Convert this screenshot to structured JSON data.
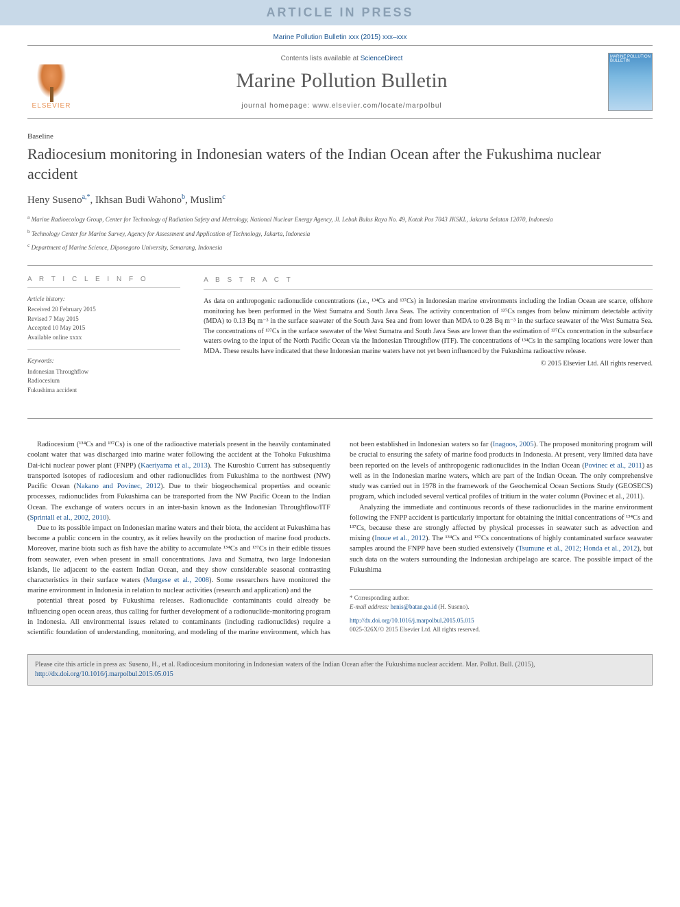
{
  "banner": {
    "text": "ARTICLE IN PRESS"
  },
  "journal_ref": "Marine Pollution Bulletin xxx (2015) xxx–xxx",
  "header": {
    "contents_prefix": "Contents lists available at ",
    "contents_link": "ScienceDirect",
    "journal_name": "Marine Pollution Bulletin",
    "homepage": "journal homepage: www.elsevier.com/locate/marpolbul",
    "elsevier_label": "ELSEVIER",
    "cover_label": "MARINE POLLUTION BULLETIN"
  },
  "article": {
    "type": "Baseline",
    "title": "Radiocesium monitoring in Indonesian waters of the Indian Ocean after the Fukushima nuclear accident",
    "authors_html": "Heny Suseno",
    "author1": {
      "name": "Heny Suseno",
      "marks": "a,*"
    },
    "author2": {
      "name": "Ikhsan Budi Wahono",
      "marks": "b"
    },
    "author3": {
      "name": "Muslim",
      "marks": "c"
    },
    "affiliations": {
      "a": "Marine Radioecology Group, Center for Technology of Radiation Safety and Metrology, National Nuclear Energy Agency, Jl. Lebak Bulus Raya No. 49, Kotak Pos 7043 JKSKL, Jakarta Selatan 12070, Indonesia",
      "b": "Technology Center for Marine Survey, Agency for Assessment and Application of Technology, Jakarta, Indonesia",
      "c": "Department of Marine Science, Diponegoro University, Semarang, Indonesia"
    }
  },
  "info": {
    "heading": "A R T I C L E   I N F O",
    "history_label": "Article history:",
    "history": {
      "received": "Received 20 February 2015",
      "revised": "Revised 7 May 2015",
      "accepted": "Accepted 10 May 2015",
      "online": "Available online xxxx"
    },
    "keywords_label": "Keywords:",
    "keywords": [
      "Indonesian Throughflow",
      "Radiocesium",
      "Fukushima accident"
    ]
  },
  "abstract": {
    "heading": "A B S T R A C T",
    "text": "As data on anthropogenic radionuclide concentrations (i.e., ¹³⁴Cs and ¹³⁷Cs) in Indonesian marine environments including the Indian Ocean are scarce, offshore monitoring has been performed in the West Sumatra and South Java Seas. The activity concentration of ¹³⁷Cs ranges from below minimum detectable activity (MDA) to 0.13 Bq m⁻³ in the surface seawater of the South Java Sea and from lower than MDA to 0.28 Bq m⁻³ in the surface seawater of the West Sumatra Sea. The concentrations of ¹³⁷Cs in the surface seawater of the West Sumatra and South Java Seas are lower than the estimation of ¹³⁷Cs concentration in the subsurface waters owing to the input of the North Pacific Ocean via the Indonesian Throughflow (ITF). The concentrations of ¹³⁴Cs in the sampling locations were lower than MDA. These results have indicated that these Indonesian marine waters have not yet been influenced by the Fukushima radioactive release.",
    "copyright": "© 2015 Elsevier Ltd. All rights reserved."
  },
  "body": {
    "p1": "Radiocesium (¹³⁴Cs and ¹³⁷Cs) is one of the radioactive materials present in the heavily contaminated coolant water that was discharged into marine water following the accident at the Tohoku Fukushima Dai-ichi nuclear power plant (FNPP) (Kaeriyama et al., 2013). The Kuroshio Current has subsequently transported isotopes of radiocesium and other radionuclides from Fukushima to the northwest (NW) Pacific Ocean (Nakano and Povinec, 2012). Due to their biogeochemical properties and oceanic processes, radionuclides from Fukushima can be transported from the NW Pacific Ocean to the Indian Ocean. The exchange of waters occurs in an inter-basin known as the Indonesian Throughflow/ITF (Sprintall et al., 2002, 2010).",
    "p2": "Due to its possible impact on Indonesian marine waters and their biota, the accident at Fukushima has become a public concern in the country, as it relies heavily on the production of marine food products. Moreover, marine biota such as fish have the ability to accumulate ¹³⁴Cs and ¹³⁷Cs in their edible tissues from seawater, even when present in small concentrations. Java and Sumatra, two large Indonesian islands, lie adjacent to the eastern Indian Ocean, and they show considerable seasonal contrasting characteristics in their surface waters (Murgese et al., 2008). Some researchers have monitored the marine environment in Indonesia in relation to nuclear activities (research and application) and the",
    "p3": "potential threat posed by Fukushima releases. Radionuclide contaminants could already be influencing open ocean areas, thus calling for further development of a radionuclide-monitoring program in Indonesia. All environmental issues related to contaminants (including radionuclides) require a scientific foundation of understanding, monitoring, and modeling of the marine environment, which has not been established in Indonesian waters so far (Inagoos, 2005). The proposed monitoring program will be crucial to ensuring the safety of marine food products in Indonesia. At present, very limited data have been reported on the levels of anthropogenic radionuclides in the Indian Ocean (Povinec et al., 2011) as well as in the Indonesian marine waters, which are part of the Indian Ocean. The only comprehensive study was carried out in 1978 in the framework of the Geochemical Ocean Sections Study (GEOSECS) program, which included several vertical profiles of tritium in the water column (Povinec et al., 2011).",
    "p4": "Analyzing the immediate and continuous records of these radionuclides in the marine environment following the FNPP accident is particularly important for obtaining the initial concentrations of ¹³⁴Cs and ¹³⁷Cs, because these are strongly affected by physical processes in seawater such as advection and mixing (Inoue et al., 2012). The ¹³⁴Cs and ¹³⁷Cs concentrations of highly contaminated surface seawater samples around the FNPP have been studied extensively (Tsumune et al., 2012; Honda et al., 2012), but such data on the waters surrounding the Indonesian archipelago are scarce. The possible impact of the Fukushima"
  },
  "footer": {
    "corr_label": "* Corresponding author.",
    "email_label": "E-mail address: ",
    "email": "henis@batan.go.id",
    "email_name": " (H. Suseno).",
    "doi_url": "http://dx.doi.org/10.1016/j.marpolbul.2015.05.015",
    "issn_line": "0025-326X/© 2015 Elsevier Ltd. All rights reserved."
  },
  "cite": {
    "text": "Please cite this article in press as: Suseno, H., et al. Radiocesium monitoring in Indonesian waters of the Indian Ocean after the Fukushima nuclear accident. Mar. Pollut. Bull. (2015), ",
    "link": "http://dx.doi.org/10.1016/j.marpolbul.2015.05.015"
  },
  "colors": {
    "banner_bg": "#c8d9e8",
    "banner_text": "#8a9fb3",
    "link": "#1a5490",
    "elsevier": "#e8955a",
    "cite_bg": "#e8e8e8"
  }
}
